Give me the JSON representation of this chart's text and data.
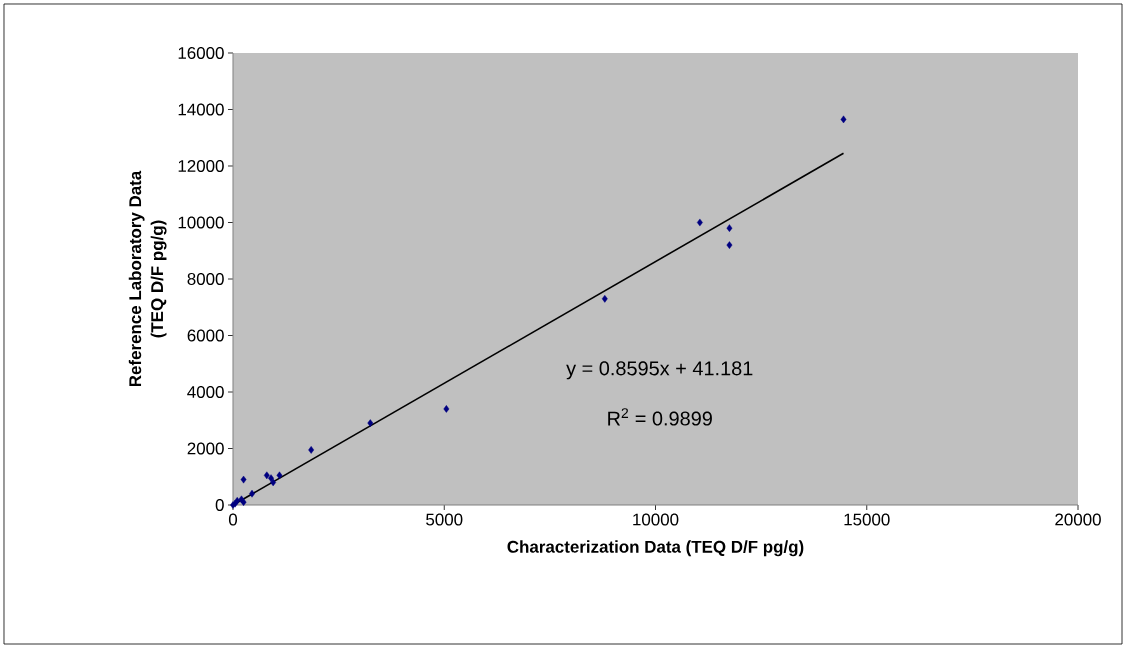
{
  "chart_data": {
    "type": "scatter",
    "xlabel": "Characterization Data (TEQ D/F pg/g)",
    "ylabel": "Reference Laboratory Data\n(TEQ D/F pg/g)",
    "xlim": [
      0,
      20000
    ],
    "ylim": [
      0,
      16000
    ],
    "xticks": [
      0,
      5000,
      10000,
      15000,
      20000
    ],
    "yticks": [
      0,
      2000,
      4000,
      6000,
      8000,
      10000,
      12000,
      14000,
      16000
    ],
    "grid": false,
    "series": [
      {
        "marker": "diamond",
        "color": "#000080",
        "x": [
          0,
          50,
          100,
          200,
          250,
          250,
          450,
          800,
          900,
          950,
          1100,
          1850,
          3250,
          5050,
          8800,
          11050,
          11750,
          11750,
          14450
        ],
        "values": [
          0,
          50,
          150,
          200,
          100,
          900,
          400,
          1050,
          950,
          800,
          1050,
          1950,
          2900,
          3400,
          7300,
          10000,
          9800,
          9200,
          13650
        ]
      },
      {
        "type": "line",
        "marker": "none",
        "color": "#000000",
        "x": [
          0,
          14450
        ],
        "values": [
          0,
          12450
        ]
      }
    ],
    "annotations": [
      "y = 0.8595x + 41.181",
      "R$^{2}$ = 0.9899"
    ]
  }
}
